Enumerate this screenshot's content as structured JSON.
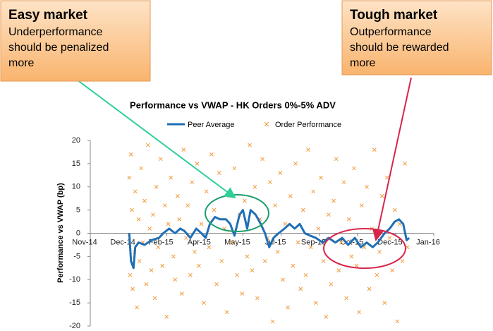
{
  "chart_data": {
    "type": "line+scatter",
    "title": "Performance vs VWAP  - HK Orders 0%-5%  ADV",
    "y_label": "Performance vs VWAP (bp)",
    "xlim": [
      0,
      405
    ],
    "xticks": [
      {
        "value": 0,
        "label": "Nov-14"
      },
      {
        "value": 45,
        "label": "Dec-14"
      },
      {
        "value": 90,
        "label": "Feb-15"
      },
      {
        "value": 135,
        "label": "Apr-15"
      },
      {
        "value": 180,
        "label": "May-15"
      },
      {
        "value": 225,
        "label": "Jul-15"
      },
      {
        "value": 270,
        "label": "Sep-15"
      },
      {
        "value": 315,
        "label": "Oct-15"
      },
      {
        "value": 360,
        "label": "Dec-15"
      },
      {
        "value": 405,
        "label": "Jan-16"
      }
    ],
    "ylim": [
      -20,
      20
    ],
    "yticks": [
      -20,
      -15,
      -10,
      -5,
      0,
      5,
      10,
      15,
      20
    ],
    "legend": "top",
    "series": [
      {
        "name": "Peer Average",
        "type": "line",
        "color": "#1f6fb5",
        "x": [
          46,
          48,
          51,
          53,
          57,
          64,
          72,
          81,
          86,
          93,
          100,
          106,
          111,
          118,
          125,
          131,
          136,
          141,
          147,
          153,
          160,
          165,
          170,
          176,
          180,
          185,
          189,
          195,
          201,
          206,
          211,
          216,
          222,
          229,
          235,
          241,
          247,
          253,
          259,
          266,
          274,
          281,
          289,
          297,
          304,
          312,
          319,
          326,
          333,
          339,
          347,
          353,
          359,
          364,
          369,
          373,
          376
        ],
        "values": [
          0,
          -6,
          -7.5,
          -3,
          -2,
          -2.5,
          -1.5,
          -1,
          0,
          1,
          0,
          1,
          0.5,
          -1,
          1,
          0,
          -1,
          2,
          3.5,
          3,
          3,
          2,
          -0.5,
          4,
          5,
          1,
          5,
          4,
          2,
          0,
          -3,
          -1,
          0,
          1,
          2,
          1,
          2,
          0,
          -0.5,
          -1,
          -2,
          -1,
          -2,
          -1,
          -2.5,
          -1,
          -3,
          -2,
          -3,
          -2,
          0,
          1,
          2.5,
          3,
          2,
          -1.5,
          -1
        ]
      },
      {
        "name": "Order Performance",
        "type": "scatter",
        "color": "#f39a3c",
        "x": [
          46,
          47,
          48,
          49,
          50,
          52,
          53,
          55,
          57,
          58,
          60,
          62,
          64,
          66,
          68,
          70,
          72,
          74,
          76,
          78,
          80,
          83,
          85,
          88,
          90,
          92,
          95,
          98,
          100,
          103,
          105,
          108,
          110,
          113,
          115,
          118,
          120,
          123,
          126,
          128,
          131,
          134,
          137,
          140,
          143,
          146,
          149,
          152,
          155,
          158,
          161,
          164,
          167,
          170,
          173,
          176,
          179,
          182,
          185,
          188,
          191,
          194,
          197,
          200,
          203,
          206,
          209,
          212,
          215,
          218,
          221,
          224,
          227,
          230,
          233,
          236,
          239,
          242,
          245,
          248,
          251,
          254,
          257,
          260,
          263,
          266,
          269,
          272,
          275,
          278,
          281,
          284,
          287,
          290,
          293,
          296,
          299,
          302,
          305,
          308,
          311,
          314,
          317,
          320,
          323,
          326,
          329,
          332,
          335,
          338,
          341,
          344,
          347,
          350,
          353,
          356,
          359,
          362,
          365,
          368,
          371,
          374
        ],
        "values": [
          12,
          -9,
          17,
          5,
          -12,
          -4,
          9,
          -16,
          3,
          -6,
          14,
          -2,
          7,
          -11,
          19,
          1,
          -8,
          4,
          -14,
          10,
          -3,
          16,
          -7,
          6,
          -18,
          2,
          12,
          -5,
          -10,
          8,
          3,
          -13,
          18,
          -1,
          6,
          -9,
          11,
          -4,
          15,
          -7,
          2,
          -15,
          9,
          -3,
          17,
          5,
          -11,
          13,
          -6,
          1,
          -17,
          8,
          -2,
          14,
          -9,
          4,
          -13,
          7,
          -5,
          19,
          -8,
          10,
          -14,
          3,
          16,
          -6,
          -1,
          11,
          -19,
          6,
          -4,
          13,
          -10,
          2,
          -16,
          8,
          -7,
          15,
          -2,
          -12,
          5,
          -9,
          18,
          -3,
          9,
          -15,
          1,
          12,
          -6,
          -18,
          4,
          -11,
          7,
          16,
          -8,
          -2,
          11,
          -14,
          3,
          -5,
          14,
          -7,
          -17,
          6,
          -3,
          10,
          -12,
          1,
          18,
          -9,
          -4,
          8,
          -15,
          12,
          -1,
          -8,
          5,
          -19,
          2,
          -6,
          15,
          -3
        ]
      }
    ]
  },
  "annotations": [
    {
      "title": "Easy market",
      "lines": [
        "Underperformance",
        "should be penalized",
        "more"
      ]
    },
    {
      "title": "Tough market",
      "lines": [
        "Outperformance",
        "should be rewarded",
        "more"
      ]
    }
  ]
}
